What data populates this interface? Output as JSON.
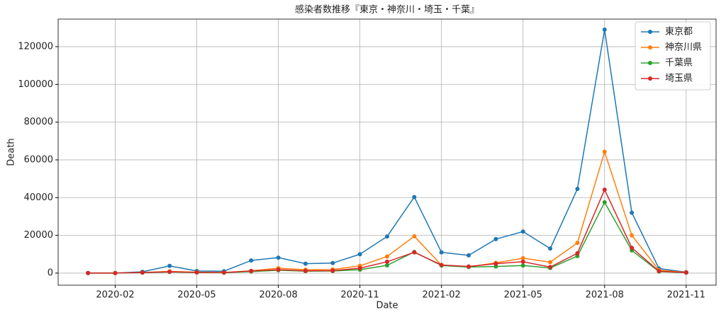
{
  "chart_data": {
    "type": "line",
    "title": "感染者数推移『東京・神奈川・埼玉・千葉』",
    "x_label": "Date",
    "y_label": "Death",
    "x": [
      "2020-01",
      "2020-02",
      "2020-03",
      "2020-04",
      "2020-05",
      "2020-06",
      "2020-07",
      "2020-08",
      "2020-09",
      "2020-10",
      "2020-11",
      "2020-12",
      "2021-01",
      "2021-02",
      "2021-03",
      "2021-04",
      "2021-05",
      "2021-06",
      "2021-07",
      "2021-08",
      "2021-09",
      "2021-10",
      "2021-11"
    ],
    "series": [
      {
        "name": "東京都",
        "color": "#1f77b4",
        "values": [
          0,
          0,
          700,
          3800,
          1100,
          1000,
          6700,
          8200,
          5000,
          5300,
          10000,
          19400,
          40300,
          11000,
          9400,
          18000,
          22000,
          13000,
          44600,
          129000,
          32000,
          2400,
          500
        ]
      },
      {
        "name": "神奈川県",
        "color": "#ff7f0e",
        "values": [
          0,
          0,
          300,
          900,
          500,
          300,
          1200,
          2600,
          1800,
          1900,
          3800,
          8800,
          19500,
          4200,
          3300,
          5400,
          7900,
          5800,
          16000,
          64300,
          20000,
          1500,
          400
        ]
      },
      {
        "name": "千葉県",
        "color": "#2ca02c",
        "values": [
          0,
          0,
          200,
          600,
          300,
          200,
          800,
          1500,
          1000,
          1100,
          1800,
          4100,
          11200,
          4000,
          3200,
          3500,
          4000,
          2700,
          9000,
          37500,
          12000,
          800,
          200
        ]
      },
      {
        "name": "埼玉県",
        "color": "#d62728",
        "values": [
          0,
          0,
          300,
          700,
          400,
          300,
          1100,
          1800,
          1200,
          1300,
          2600,
          6000,
          11000,
          4300,
          3500,
          5000,
          6000,
          3200,
          10500,
          44200,
          13400,
          1000,
          300
        ]
      }
    ],
    "xticks": [
      "2020-02",
      "2020-05",
      "2020-08",
      "2020-11",
      "2021-02",
      "2021-05",
      "2021-08",
      "2021-11"
    ],
    "ylim": [
      -6400,
      134600
    ],
    "yticks": [
      0,
      20000,
      40000,
      60000,
      80000,
      100000,
      120000
    ],
    "grid": true,
    "legend": "upper-right"
  }
}
